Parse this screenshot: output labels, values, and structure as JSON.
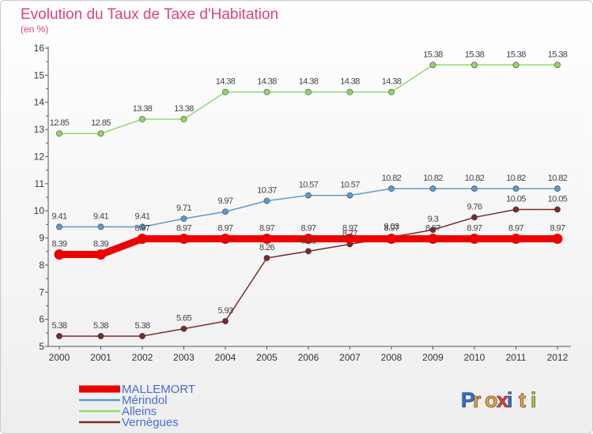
{
  "chart_data": {
    "type": "line",
    "title": "Evolution du Taux de Taxe d'Habitation",
    "subtitle": "(en %)",
    "x": [
      "2000",
      "2001",
      "2002",
      "2003",
      "2004",
      "2005",
      "2006",
      "2007",
      "2008",
      "2009",
      "2010",
      "2011",
      "2012"
    ],
    "y_ticks": [
      "5",
      "6",
      "7",
      "8",
      "9",
      "10",
      "11",
      "12",
      "13",
      "14",
      "15",
      "16"
    ],
    "ylim": [
      5,
      16
    ],
    "grid": false,
    "legend_position": "bottom-left",
    "series": [
      {
        "name": "MALLEMORT",
        "color": "#ee0000",
        "values": [
          8.39,
          8.39,
          8.97,
          8.97,
          8.97,
          8.97,
          8.97,
          8.97,
          8.97,
          8.97,
          8.97,
          8.97,
          8.97
        ],
        "labels": [
          "8.39",
          "8.39",
          "8.97",
          "8.97",
          "8.97",
          "8.97",
          "8.97",
          "8.97",
          "8.97",
          "8.97",
          "8.97",
          "8.97",
          "8.97"
        ]
      },
      {
        "name": "Mérindol",
        "color": "#5b9bd5",
        "values": [
          9.41,
          9.41,
          9.41,
          9.71,
          9.97,
          10.37,
          10.57,
          10.57,
          10.82,
          10.82,
          10.82,
          10.82,
          10.82
        ],
        "labels": [
          "9.41",
          "9.41",
          "9.41",
          "9.71",
          "9.97",
          "10.37",
          "10.57",
          "10.57",
          "10.82",
          "10.82",
          "10.82",
          "10.82",
          "10.82"
        ]
      },
      {
        "name": "Alleins",
        "color": "#8fd96b",
        "values": [
          12.85,
          12.85,
          13.38,
          13.38,
          14.38,
          14.38,
          14.38,
          14.38,
          14.38,
          15.38,
          15.38,
          15.38,
          15.38
        ],
        "labels": [
          "12.85",
          "12.85",
          "13.38",
          "13.38",
          "14.38",
          "14.38",
          "14.38",
          "14.38",
          "14.38",
          "15.38",
          "15.38",
          "15.38",
          "15.38"
        ]
      },
      {
        "name": "Vernègues",
        "color": "#7a2a2a",
        "values": [
          5.38,
          5.38,
          5.38,
          5.65,
          5.93,
          8.26,
          8.51,
          8.77,
          9.03,
          9.3,
          9.76,
          10.05,
          10.05
        ],
        "labels": [
          "5.38",
          "5.38",
          "5.38",
          "5.65",
          "5.93",
          "8.26",
          "8.51",
          "8.77",
          "9.03",
          "9.3",
          "9.76",
          "10.05",
          "10.05"
        ]
      }
    ]
  },
  "logo": {
    "letters": [
      "P",
      "r",
      "o",
      "x",
      "i",
      "t",
      "i"
    ],
    "colors": [
      "#2f6fd6",
      "#e8a13a",
      "#e8a13a",
      "#e83a3a",
      "#2f6fd6",
      "#e8a13a",
      "#9bd13a"
    ]
  },
  "colors": {
    "axis": "#333333",
    "title": "#e0407a",
    "legend_text": "#4a6bd6"
  }
}
